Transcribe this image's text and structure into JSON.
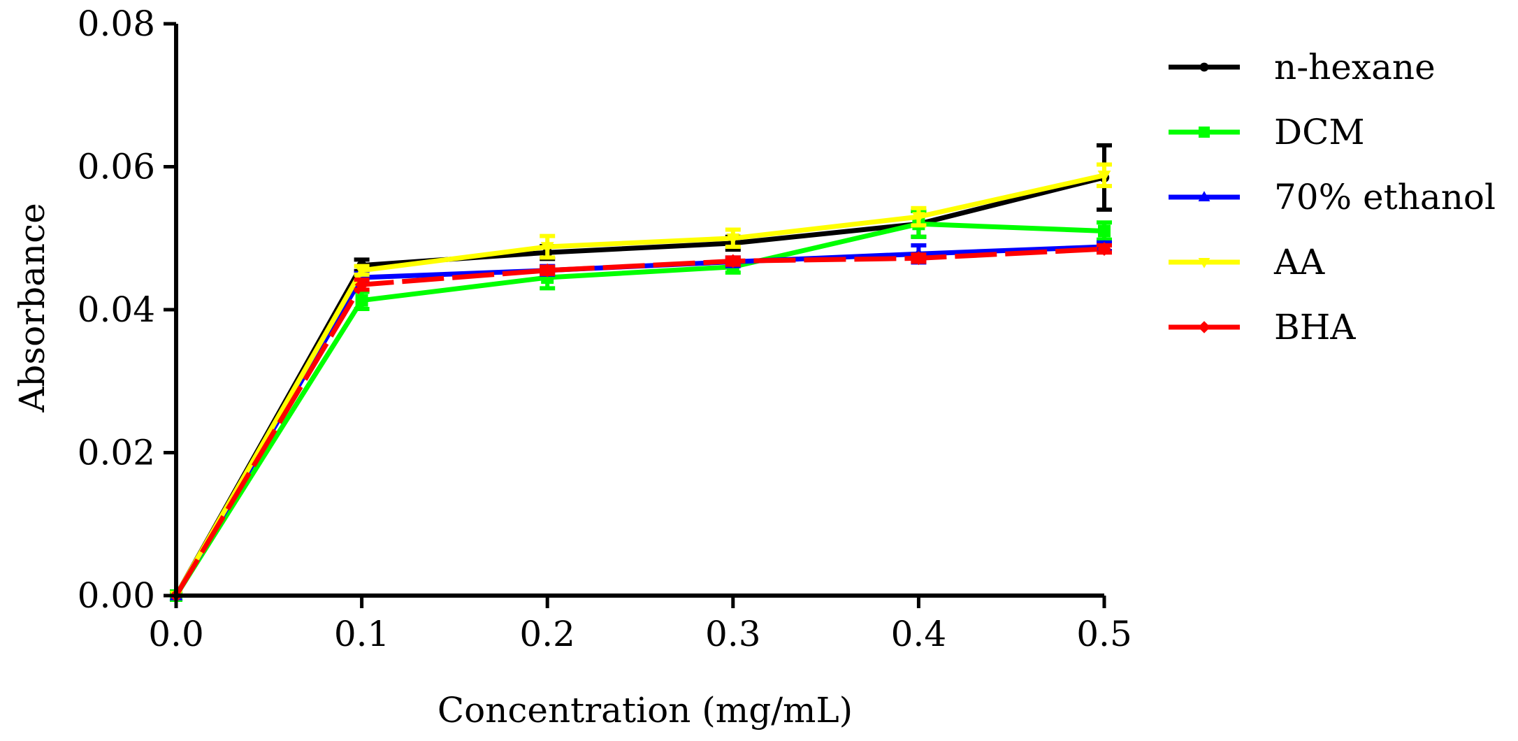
{
  "chart_data": {
    "type": "line",
    "title": "",
    "xlabel": "Concentration (mg/mL)",
    "ylabel": "Absorbance",
    "xlim": [
      0,
      0.5
    ],
    "ylim": [
      0,
      0.08
    ],
    "x": [
      0.0,
      0.1,
      0.2,
      0.3,
      0.4,
      0.5
    ],
    "xticks": [
      "0.0",
      "0.1",
      "0.2",
      "0.3",
      "0.4",
      "0.5"
    ],
    "yticks": [
      "0.00",
      "0.02",
      "0.04",
      "0.06",
      "0.08"
    ],
    "grid": false,
    "legend_position": "right",
    "series": [
      {
        "name": "n-hexane",
        "color": "#000000",
        "marker": "circle",
        "values": [
          0.0,
          0.0462,
          0.048,
          0.0493,
          0.052,
          0.0585
        ],
        "errors": [
          0,
          0.0008,
          0.0009,
          0.0009,
          0.0018,
          0.0045
        ]
      },
      {
        "name": "DCM",
        "color": "#00ff00",
        "marker": "square",
        "values": [
          0.0,
          0.0413,
          0.0445,
          0.046,
          0.052,
          0.051
        ],
        "errors": [
          0,
          0.0012,
          0.0015,
          0.0008,
          0.0018,
          0.0012
        ]
      },
      {
        "name": "70% ethanol",
        "color": "#0000ff",
        "marker": "triangle-up",
        "values": [
          0.0,
          0.0445,
          0.0455,
          0.0467,
          0.0478,
          0.0488
        ],
        "errors": [
          0,
          0.0006,
          0.0006,
          0.0006,
          0.0012,
          0.0006
        ]
      },
      {
        "name": "AA",
        "color": "#ffff00",
        "marker": "triangle-down",
        "values": [
          0.0,
          0.0455,
          0.0488,
          0.05,
          0.053,
          0.0588
        ],
        "errors": [
          0,
          0.0006,
          0.0015,
          0.0012,
          0.0012,
          0.0015
        ]
      },
      {
        "name": "BHA",
        "color": "#ff0000",
        "marker": "diamond",
        "values": [
          0.0,
          0.0435,
          0.0455,
          0.0468,
          0.0472,
          0.0485
        ],
        "errors": [
          0,
          0.0007,
          0.0005,
          0.0005,
          0.0005,
          0.0005
        ]
      }
    ]
  }
}
